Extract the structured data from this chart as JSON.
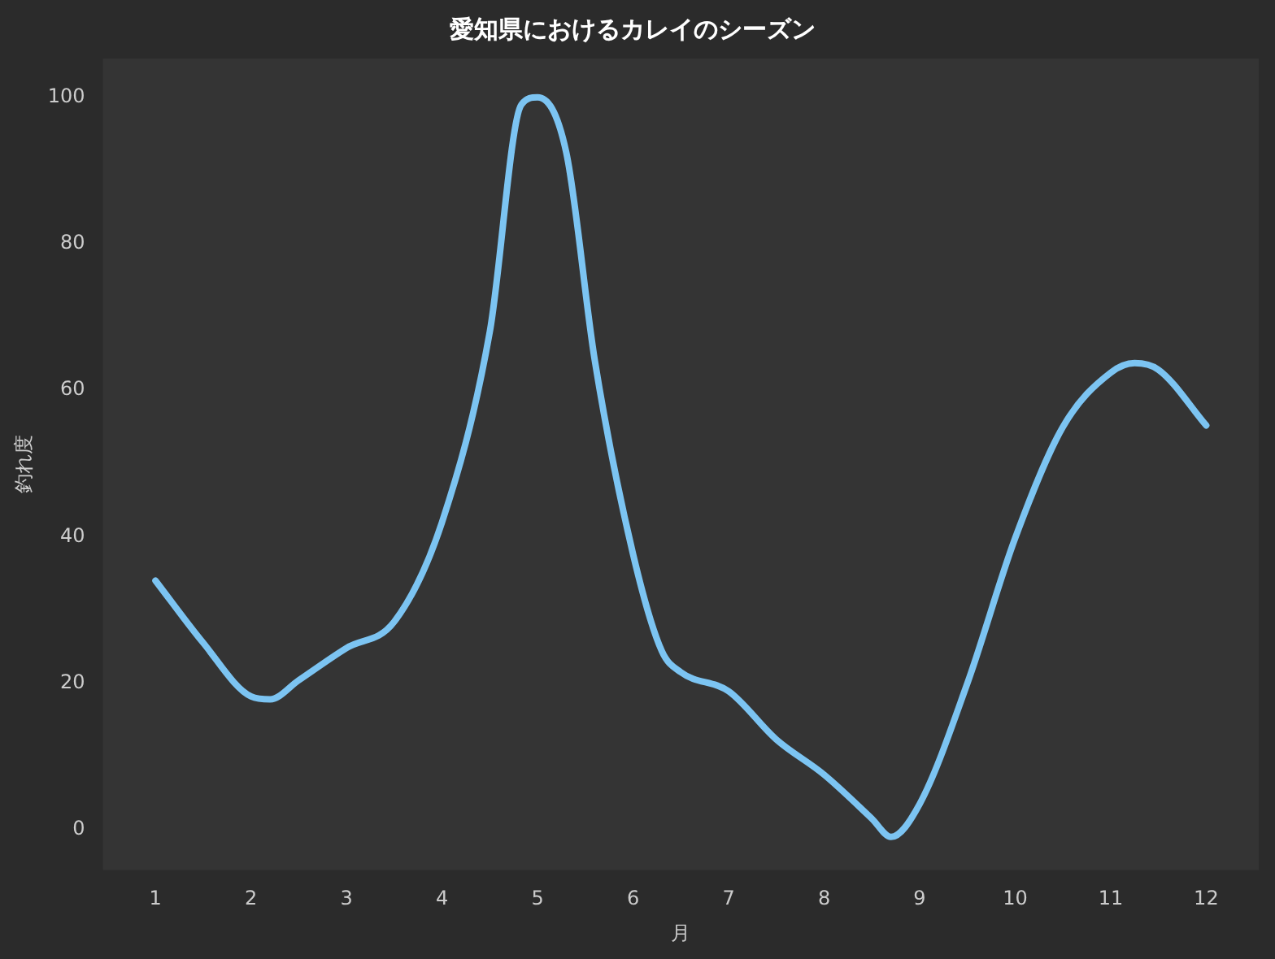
{
  "chart_data": {
    "type": "line",
    "title": "愛知県におけるカレイのシーズン",
    "xlabel": "月",
    "ylabel": "釣れ度",
    "x": [
      1,
      1.5,
      2,
      2.2,
      2.5,
      3,
      3.5,
      4,
      4.5,
      4.83,
      5,
      5.3,
      5.6,
      6,
      6.3,
      6.5,
      7,
      7.5,
      8,
      8.5,
      8.7,
      9,
      9.5,
      10,
      10.5,
      11,
      11.25,
      11.5,
      12
    ],
    "series": [
      {
        "color": "#7cc4f2",
        "values": [
          34,
          25.5,
          18.2,
          17.8,
          20.4,
          24.8,
          28.4,
          42,
          68,
          99,
          100,
          92.5,
          64,
          37.6,
          24.4,
          21.5,
          18.9,
          12.3,
          7.5,
          1.5,
          -1,
          3.5,
          20,
          39.8,
          55,
          62.4,
          63.7,
          62.8,
          55.2
        ]
      }
    ],
    "xlim": [
      0.45,
      12.55
    ],
    "ylim": [
      -5.5,
      105.3
    ],
    "xticks": [
      1,
      2,
      3,
      4,
      5,
      6,
      7,
      8,
      9,
      10,
      11,
      12
    ],
    "yticks": [
      0,
      20,
      40,
      60,
      80,
      100
    ],
    "grid": false,
    "legend": false,
    "marker": "none",
    "line_style": "solid"
  }
}
